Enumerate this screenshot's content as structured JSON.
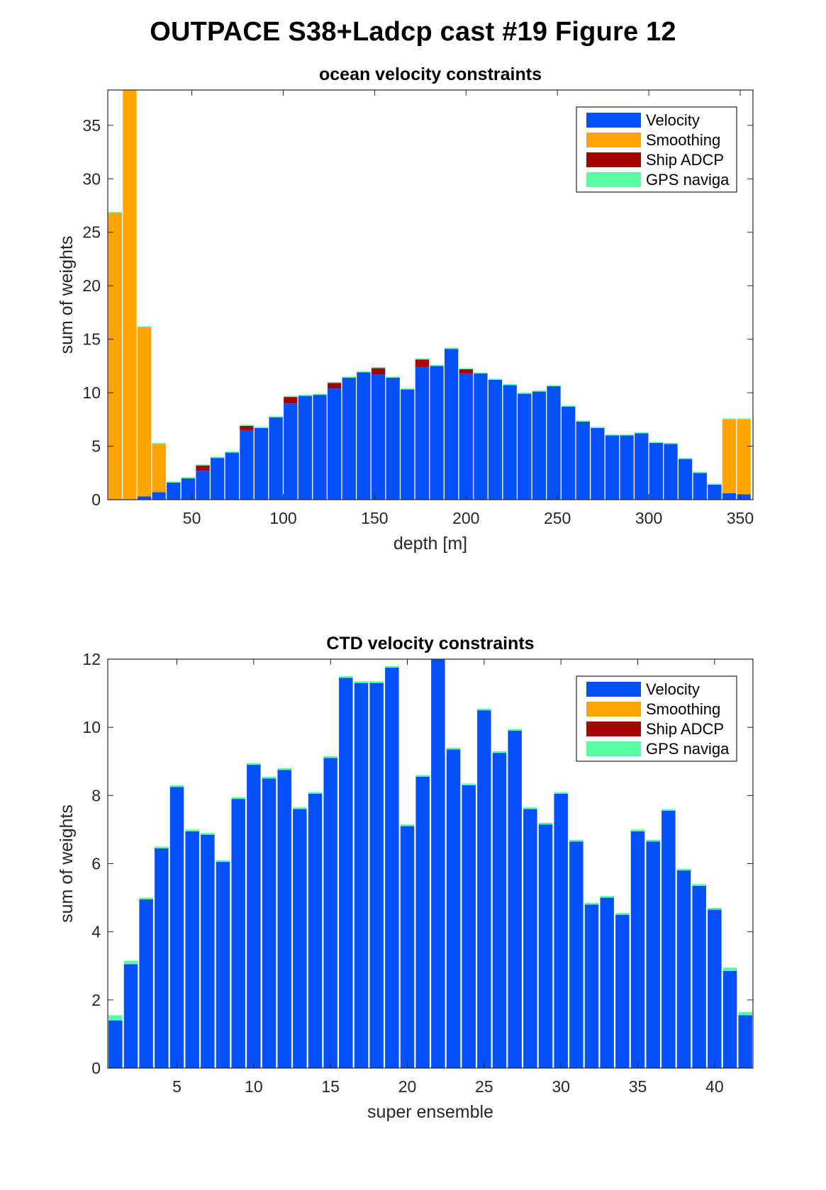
{
  "figure_title": "OUTPACE S38+Ladcp cast #19  Figure 12",
  "colors": {
    "Velocity": "#0650f9",
    "Smoothing": "#ffa400",
    "Ship ADCP": "#a70000",
    "GPS naviga": "#56ffa4"
  },
  "chart_data": [
    {
      "type": "bar",
      "stacked": true,
      "title": "ocean velocity constraints",
      "xlabel": "depth [m]",
      "ylabel": "sum of weights",
      "xlim": [
        4,
        357
      ],
      "ylim": [
        0,
        38.3
      ],
      "xticks": [
        50,
        100,
        150,
        200,
        250,
        300,
        350
      ],
      "yticks": [
        0,
        5,
        10,
        15,
        20,
        25,
        30,
        35
      ],
      "legend": {
        "location": "top-right",
        "entries": [
          "Velocity",
          "Smoothing",
          "Ship ADCP",
          "GPS naviga"
        ]
      },
      "bar_width": 7.5,
      "x": [
        8,
        16,
        24,
        32,
        40,
        48,
        56,
        64,
        72,
        80,
        88,
        96,
        104,
        112,
        120,
        128,
        136,
        144,
        152,
        160,
        168,
        176,
        184,
        192,
        200,
        208,
        216,
        224,
        232,
        240,
        248,
        256,
        264,
        272,
        280,
        288,
        296,
        304,
        312,
        320,
        328,
        336,
        344,
        352
      ],
      "series": [
        {
          "name": "Velocity",
          "values": [
            0,
            0,
            0.3,
            0.7,
            1.6,
            2.0,
            2.7,
            3.9,
            4.4,
            6.5,
            6.7,
            7.7,
            9.0,
            9.7,
            9.8,
            10.4,
            11.4,
            11.9,
            11.7,
            11.4,
            10.3,
            12.4,
            12.5,
            14.1,
            11.8,
            11.8,
            11.2,
            10.7,
            9.9,
            10.1,
            10.6,
            8.7,
            7.3,
            6.7,
            6.0,
            6.0,
            6.2,
            5.3,
            5.2,
            3.8,
            2.5,
            1.4,
            0.6,
            0.5
          ]
        },
        {
          "name": "Smoothing",
          "values": [
            26.8,
            38.3,
            15.8,
            4.5,
            0,
            0,
            0,
            0,
            0,
            0,
            0,
            0,
            0,
            0,
            0,
            0,
            0,
            0,
            0,
            0,
            0,
            0,
            0,
            0,
            0,
            0,
            0,
            0,
            0,
            0,
            0,
            0,
            0,
            0,
            0,
            0,
            0,
            0,
            0,
            0,
            0,
            0,
            6.9,
            7.0
          ]
        },
        {
          "name": "Ship ADCP",
          "values": [
            0,
            0,
            0,
            0,
            0,
            0,
            0.5,
            0,
            0,
            0.4,
            0,
            0,
            0.6,
            0,
            0,
            0.5,
            0,
            0,
            0.6,
            0,
            0,
            0.7,
            0,
            0,
            0.4,
            0,
            0,
            0,
            0,
            0,
            0,
            0,
            0,
            0,
            0,
            0,
            0,
            0,
            0,
            0,
            0,
            0,
            0,
            0
          ]
        },
        {
          "name": "GPS naviga",
          "values": [
            0.1,
            0.1,
            0.1,
            0.1,
            0.1,
            0.1,
            0.1,
            0.1,
            0.1,
            0.1,
            0.1,
            0.1,
            0.1,
            0.1,
            0.1,
            0.1,
            0.1,
            0.1,
            0.1,
            0.1,
            0.1,
            0.1,
            0.1,
            0.1,
            0.1,
            0.1,
            0.1,
            0.1,
            0.1,
            0.1,
            0.1,
            0.1,
            0.1,
            0.1,
            0.1,
            0.1,
            0.1,
            0.1,
            0.1,
            0.1,
            0.1,
            0.1,
            0.1,
            0.1
          ]
        }
      ]
    },
    {
      "type": "bar",
      "stacked": true,
      "title": "CTD velocity constraints",
      "xlabel": "super ensemble",
      "ylabel": "sum of weights",
      "xlim": [
        0.5,
        42.5
      ],
      "ylim": [
        0,
        12
      ],
      "xticks": [
        5,
        10,
        15,
        20,
        25,
        30,
        35,
        40
      ],
      "yticks": [
        0,
        2,
        4,
        6,
        8,
        10,
        12
      ],
      "legend": {
        "location": "top-right",
        "entries": [
          "Velocity",
          "Smoothing",
          "Ship ADCP",
          "GPS naviga"
        ]
      },
      "bar_width": 0.9,
      "x": [
        1,
        2,
        3,
        4,
        5,
        6,
        7,
        8,
        9,
        10,
        11,
        12,
        13,
        14,
        15,
        16,
        17,
        18,
        19,
        20,
        21,
        22,
        23,
        24,
        25,
        26,
        27,
        28,
        29,
        30,
        31,
        32,
        33,
        34,
        35,
        36,
        37,
        38,
        39,
        40,
        41,
        42
      ],
      "series": [
        {
          "name": "Velocity",
          "values": [
            1.4,
            3.05,
            4.95,
            6.45,
            8.25,
            6.95,
            6.85,
            6.05,
            7.9,
            8.9,
            8.5,
            8.75,
            7.6,
            8.05,
            9.1,
            11.45,
            11.3,
            11.3,
            11.75,
            7.1,
            8.55,
            12.0,
            9.35,
            8.3,
            10.5,
            9.25,
            9.9,
            7.6,
            7.15,
            8.05,
            6.65,
            4.8,
            5.0,
            4.5,
            6.95,
            6.65,
            7.55,
            5.8,
            5.35,
            4.65,
            2.85,
            1.55
          ]
        },
        {
          "name": "Smoothing",
          "values": [
            0,
            0,
            0,
            0,
            0,
            0,
            0,
            0,
            0,
            0,
            0,
            0,
            0,
            0,
            0,
            0,
            0,
            0,
            0,
            0,
            0,
            0,
            0,
            0,
            0,
            0,
            0,
            0,
            0,
            0,
            0,
            0,
            0,
            0,
            0,
            0,
            0,
            0,
            0,
            0,
            0,
            0
          ]
        },
        {
          "name": "Ship ADCP",
          "values": [
            0,
            0,
            0,
            0,
            0,
            0,
            0,
            0,
            0,
            0,
            0,
            0,
            0,
            0,
            0,
            0,
            0,
            0,
            0,
            0,
            0,
            0,
            0,
            0,
            0,
            0,
            0,
            0,
            0,
            0,
            0,
            0,
            0,
            0,
            0,
            0,
            0,
            0,
            0,
            0,
            0,
            0
          ]
        },
        {
          "name": "GPS naviga",
          "values": [
            0.15,
            0.1,
            0.05,
            0.05,
            0.05,
            0.05,
            0.05,
            0.05,
            0.05,
            0.05,
            0.05,
            0.05,
            0.05,
            0.05,
            0.05,
            0.05,
            0.05,
            0.05,
            0.05,
            0.05,
            0.05,
            0.05,
            0.05,
            0.05,
            0.05,
            0.05,
            0.05,
            0.05,
            0.05,
            0.05,
            0.05,
            0.05,
            0.05,
            0.05,
            0.05,
            0.05,
            0.05,
            0.05,
            0.05,
            0.05,
            0.1,
            0.1
          ]
        }
      ]
    }
  ]
}
